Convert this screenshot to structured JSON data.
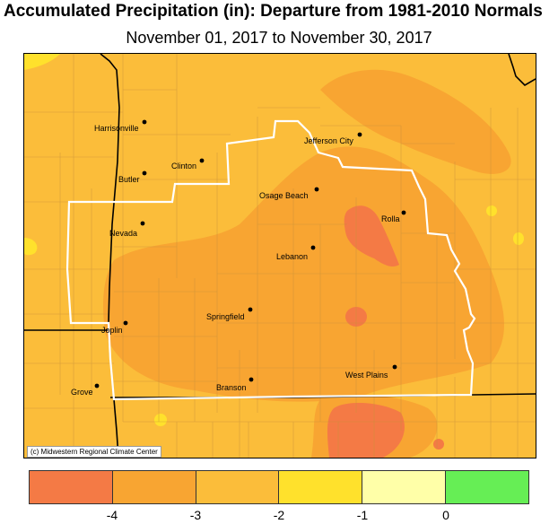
{
  "title": "Accumulated Precipitation (in): Departure from 1981-2010 Normals",
  "subtitle": "November 01, 2017 to November 30, 2017",
  "credit": "(c) Midwestern Regional Climate Center",
  "legend": {
    "bins": [
      {
        "label": "< -4",
        "color": "#f47a45"
      },
      {
        "label": "-4 to -3",
        "color": "#f8a532"
      },
      {
        "label": "-3 to -2",
        "color": "#fbbd3a"
      },
      {
        "label": "-2 to -1",
        "color": "#ffe12c"
      },
      {
        "label": "-1 to 0",
        "color": "#ffffa8"
      },
      {
        "label": "> 0",
        "color": "#66ee55"
      }
    ],
    "ticks": [
      "-4",
      "-3",
      "-2",
      "-1",
      "0"
    ]
  },
  "cities": [
    {
      "name": "Harrisonville"
    },
    {
      "name": "Clinton"
    },
    {
      "name": "Butler"
    },
    {
      "name": "Jefferson City"
    },
    {
      "name": "Osage Beach"
    },
    {
      "name": "Rolla"
    },
    {
      "name": "Nevada"
    },
    {
      "name": "Lebanon"
    },
    {
      "name": "Springfield"
    },
    {
      "name": "Joplin"
    },
    {
      "name": "West Plains"
    },
    {
      "name": "Branson"
    },
    {
      "name": "Grove"
    }
  ]
}
